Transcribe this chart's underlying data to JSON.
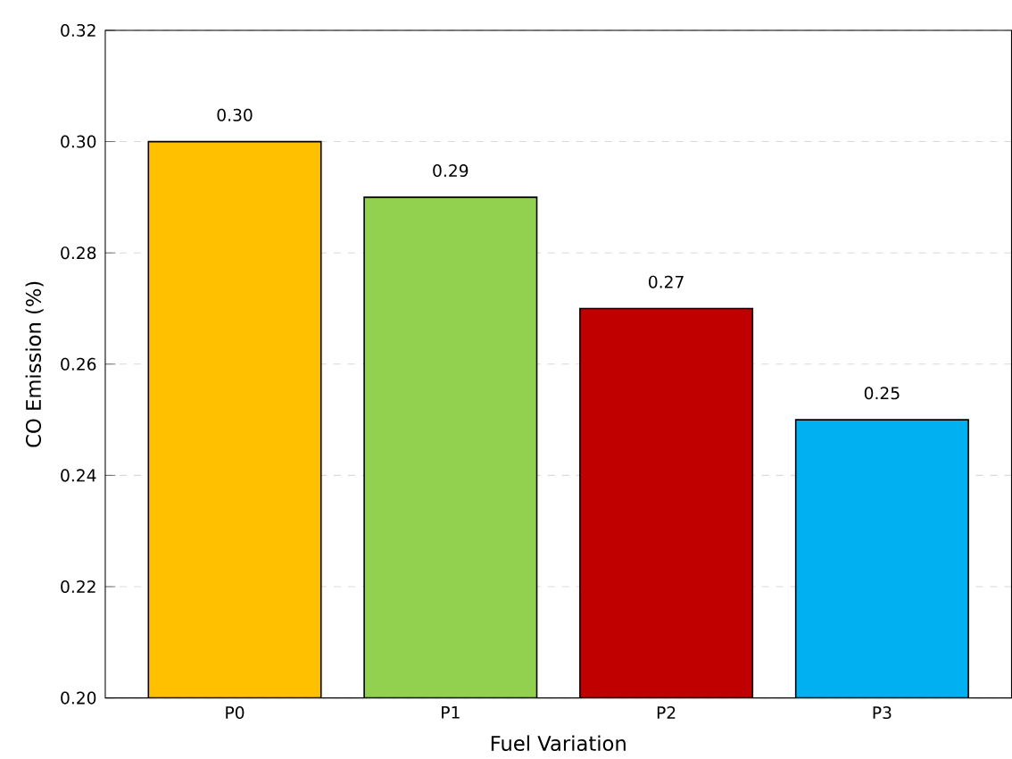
{
  "chart_data": {
    "type": "bar",
    "xlabel": "Fuel Variation",
    "ylabel": "CO Emission (%)",
    "categories": [
      "P0",
      "P1",
      "P2",
      "P3"
    ],
    "values": [
      0.3,
      0.29,
      0.27,
      0.25
    ],
    "colors": [
      "#ffc000",
      "#92d050",
      "#c00000",
      "#00b0f0"
    ],
    "value_labels": [
      "0.30",
      "0.29",
      "0.27",
      "0.25"
    ],
    "ylim": [
      0.2,
      0.32
    ],
    "yticks": [
      {
        "value": 0.2,
        "label": "0.20"
      },
      {
        "value": 0.22,
        "label": "0.22"
      },
      {
        "value": 0.24,
        "label": "0.24"
      },
      {
        "value": 0.26,
        "label": "0.26"
      },
      {
        "value": 0.28,
        "label": "0.28"
      },
      {
        "value": 0.3,
        "label": "0.30"
      },
      {
        "value": 0.32,
        "label": "0.32"
      }
    ],
    "grid": "y"
  }
}
